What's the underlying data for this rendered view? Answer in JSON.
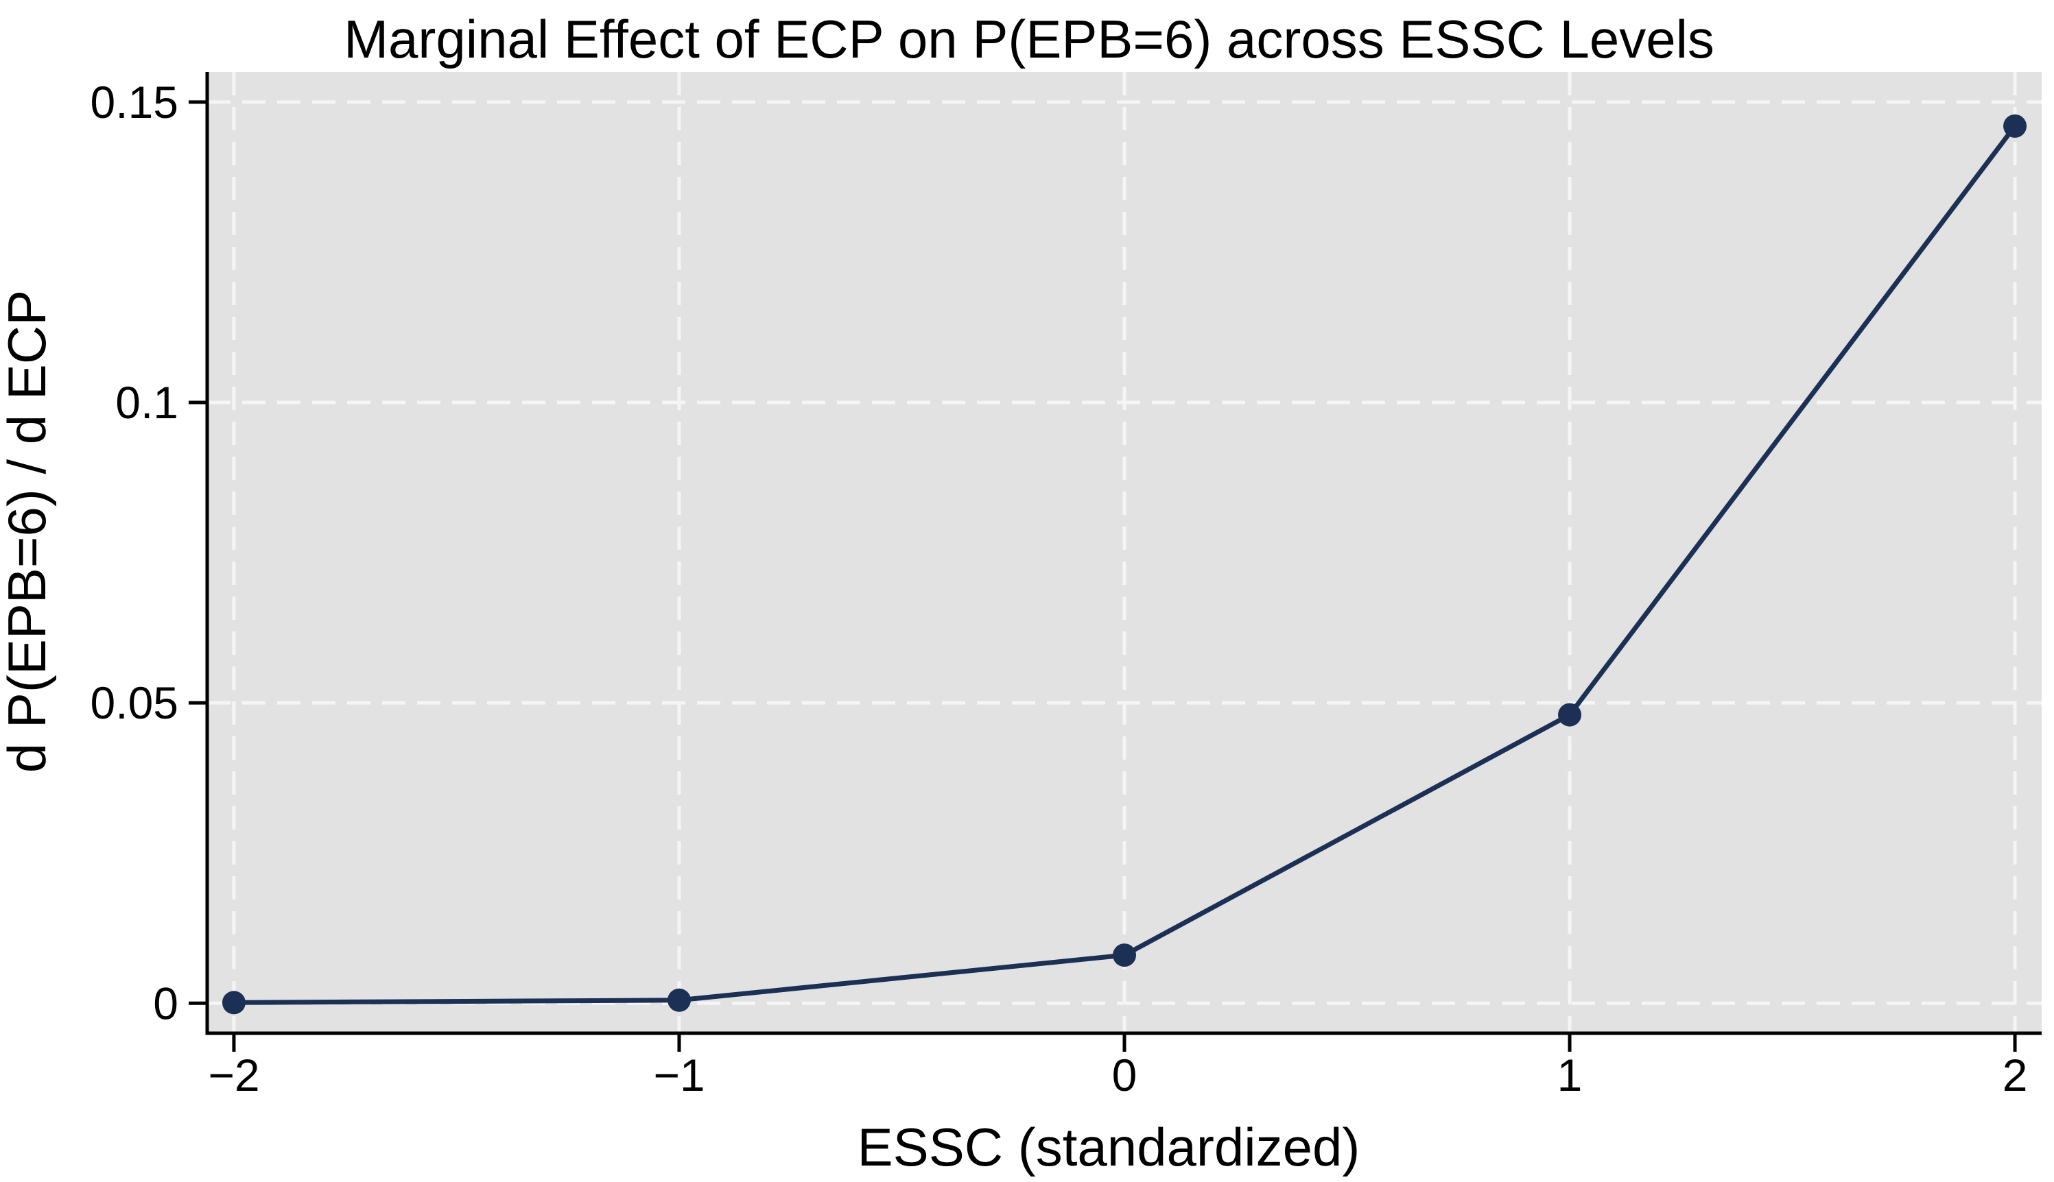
{
  "figure": {
    "title": "Marginal Effect of ECP on P(EPB=6) across ESSC Levels"
  },
  "chart_data": {
    "type": "line",
    "title": "Marginal Effect of ECP on P(EPB=6) across ESSC Levels",
    "xlabel": "ESSC (standardized)",
    "ylabel": "d P(EPB=6) / d ECP",
    "x": [
      -2,
      -1,
      0,
      1,
      2
    ],
    "y": [
      0.0001,
      0.0005,
      0.008,
      0.048,
      0.146
    ],
    "x_ticks": [
      -2,
      -1,
      0,
      1,
      2
    ],
    "x_tick_labels": [
      "−2",
      "−1",
      "0",
      "1",
      "2"
    ],
    "y_ticks": [
      0,
      0.05,
      0.1,
      0.15
    ],
    "y_tick_labels": [
      "0",
      "0.05",
      "0.1",
      "0.15"
    ],
    "xlim": [
      -2.06,
      2.06
    ],
    "ylim": [
      -0.005,
      0.155
    ],
    "grid": "dashed white on gray plot background",
    "legend": "none",
    "marker": "filled circle",
    "colors": {
      "line": "#1b3054",
      "marker": "#1b3054",
      "plot_bg": "#e2e2e2",
      "grid": "#f5f5f5",
      "axis": "#000000",
      "figure_bg": "#ffffff",
      "text": "#000000"
    }
  }
}
